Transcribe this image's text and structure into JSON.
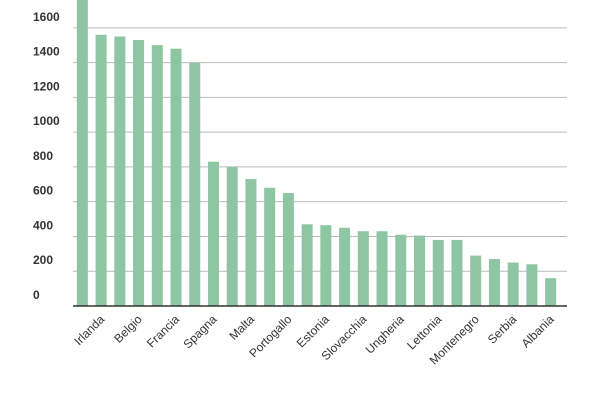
{
  "chart_data": {
    "type": "bar",
    "categories": [
      null,
      "Irlanda",
      null,
      "Belgio",
      null,
      "Francia",
      null,
      "Spagna",
      null,
      "Malta",
      null,
      "Portogallo",
      null,
      "Estonia",
      null,
      "Slovacchia",
      null,
      "Ungheria",
      null,
      "Lettonia",
      null,
      "Montenegro",
      null,
      "Serbia",
      null,
      "Albania"
    ],
    "values": [
      1760,
      1560,
      1550,
      1530,
      1500,
      1480,
      1400,
      830,
      800,
      730,
      680,
      650,
      470,
      465,
      450,
      430,
      430,
      410,
      405,
      380,
      380,
      290,
      270,
      250,
      240,
      160
    ],
    "color": "#8ec5a3",
    "ylim": [
      0,
      1760
    ],
    "yticks": [
      0,
      200,
      400,
      600,
      800,
      1000,
      1200,
      1400,
      1600
    ],
    "grid": true
  }
}
